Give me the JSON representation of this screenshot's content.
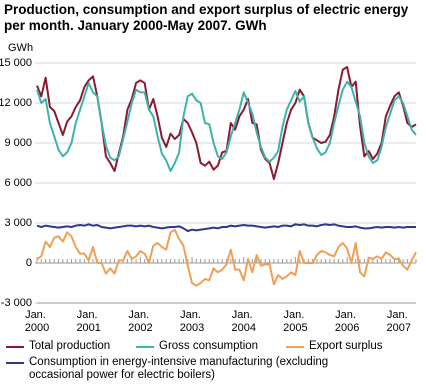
{
  "chart_data": {
    "type": "line",
    "title": "Production, consumption and export surplus of electric energy per month. January 2000-May 2007. GWh",
    "y_label": "GWh",
    "categories": [
      "Jan. 2000",
      null,
      null,
      null,
      null,
      null,
      null,
      null,
      null,
      null,
      null,
      null,
      "Jan. 2001",
      null,
      null,
      null,
      null,
      null,
      null,
      null,
      null,
      null,
      null,
      null,
      "Jan. 2002",
      null,
      null,
      null,
      null,
      null,
      null,
      null,
      null,
      null,
      null,
      null,
      "Jan. 2003",
      null,
      null,
      null,
      null,
      null,
      null,
      null,
      null,
      null,
      null,
      null,
      "Jan. 2004",
      null,
      null,
      null,
      null,
      null,
      null,
      null,
      null,
      null,
      null,
      null,
      "Jan. 2005",
      null,
      null,
      null,
      null,
      null,
      null,
      null,
      null,
      null,
      null,
      null,
      "Jan. 2006",
      null,
      null,
      null,
      null,
      null,
      null,
      null,
      null,
      null,
      null,
      null,
      "Jan. 2007",
      null,
      null,
      null,
      null
    ],
    "ylim": [
      -3000,
      15000
    ],
    "yticks": [
      {
        "value": -3000,
        "label": "-3 000"
      },
      0,
      {
        "value": 3000,
        "label": "3 000"
      },
      {
        "value": 6000,
        "label": "6 000"
      },
      {
        "value": 9000,
        "label": "9 000"
      },
      {
        "value": 12000,
        "label": "12 000"
      },
      {
        "value": 15000,
        "label": "15 000"
      }
    ],
    "grid": true,
    "series": [
      {
        "name": "Total production",
        "color": "#8b1a2e",
        "values": [
          13300,
          12500,
          13900,
          11700,
          11400,
          10500,
          9600,
          10600,
          11000,
          11700,
          12200,
          13200,
          13700,
          14000,
          12500,
          10500,
          8000,
          7500,
          6900,
          8200,
          9500,
          11500,
          12300,
          13500,
          13700,
          13500,
          11500,
          12300,
          11000,
          9400,
          8700,
          9700,
          9300,
          9600,
          10800,
          10500,
          9800,
          9000,
          7500,
          7300,
          7600,
          7000,
          7300,
          8300,
          8400,
          10500,
          10000,
          11000,
          11500,
          12300,
          10500,
          10400,
          8500,
          7800,
          7500,
          6300,
          7500,
          9000,
          10500,
          11500,
          12000,
          13000,
          12500,
          10500,
          9400,
          9200,
          9000,
          9100,
          9600,
          11000,
          13000,
          14500,
          14700,
          13200,
          13600,
          10300,
          8000,
          8400,
          7800,
          8200,
          9000,
          11000,
          11800,
          12500,
          12800,
          11800,
          10500,
          10200,
          10400
        ]
      },
      {
        "name": "Gross consumption",
        "color": "#3fb2ae",
        "values": [
          13000,
          12000,
          12300,
          10500,
          9500,
          8500,
          8000,
          8300,
          9000,
          10500,
          11500,
          12500,
          13500,
          12800,
          12500,
          10500,
          8800,
          7900,
          7700,
          8000,
          9300,
          10600,
          12000,
          13000,
          12800,
          12800,
          11500,
          11000,
          9500,
          8200,
          7700,
          6900,
          7500,
          8300,
          11000,
          12500,
          12700,
          12200,
          12000,
          10500,
          10400,
          9000,
          8000,
          7800,
          8300,
          9500,
          10500,
          11500,
          12800,
          12000,
          11200,
          9800,
          8700,
          7900,
          7600,
          7900,
          8400,
          10200,
          11500,
          12200,
          12900,
          12100,
          12500,
          10500,
          9400,
          8600,
          8100,
          8300,
          9000,
          10500,
          11800,
          13000,
          13600,
          13200,
          12100,
          11000,
          9000,
          8000,
          7500,
          7700,
          8700,
          10200,
          11200,
          12200,
          12500,
          12000,
          11000,
          10000,
          9600
        ]
      },
      {
        "name": "Export surplus",
        "color": "#f0a055",
        "values": [
          300,
          500,
          1600,
          1200,
          1900,
          2000,
          1600,
          2300,
          2000,
          1200,
          700,
          700,
          200,
          1200,
          0,
          0,
          -800,
          -400,
          -800,
          200,
          200,
          900,
          300,
          500,
          900,
          700,
          0,
          1300,
          1500,
          1200,
          1000,
          2300,
          2500,
          1800,
          1300,
          -200,
          -1500,
          -1700,
          -1500,
          -1200,
          -1300,
          -400,
          -700,
          -500,
          -100,
          1000,
          -500,
          -500,
          -1300,
          300,
          -700,
          600,
          -200,
          -100,
          -100,
          -1600,
          -900,
          -1200,
          -1000,
          -700,
          -900,
          900,
          0,
          0,
          0,
          600,
          900,
          800,
          600,
          500,
          1200,
          1500,
          1100,
          0,
          1500,
          -700,
          -1000,
          400,
          300,
          500,
          300,
          800,
          600,
          300,
          300,
          -200,
          -500,
          200,
          800
        ]
      },
      {
        "name": "Consumption in energy-intensive manufacturing (excluding occasional power for electric boilers)",
        "color": "#2b3a8f",
        "values": [
          2800,
          2700,
          2800,
          2750,
          2700,
          2650,
          2700,
          2750,
          2700,
          2800,
          2850,
          2800,
          2900,
          2800,
          2850,
          2700,
          2650,
          2600,
          2650,
          2700,
          2750,
          2800,
          2800,
          2750,
          2800,
          2750,
          2800,
          2700,
          2650,
          2600,
          2650,
          2700,
          2700,
          2750,
          2600,
          2400,
          2500,
          2450,
          2500,
          2550,
          2600,
          2650,
          2600,
          2700,
          2700,
          2800,
          2750,
          2800,
          2850,
          2800,
          2800,
          2750,
          2700,
          2650,
          2700,
          2750,
          2700,
          2800,
          2800,
          2750,
          2900,
          2850,
          2900,
          2800,
          2800,
          2750,
          2850,
          2900,
          2850,
          2900,
          2800,
          2750,
          2700,
          2700,
          2750,
          2650,
          2600,
          2600,
          2650,
          2700,
          2650,
          2700,
          2700,
          2650,
          2700,
          2650,
          2700,
          2700,
          2700
        ]
      }
    ]
  }
}
